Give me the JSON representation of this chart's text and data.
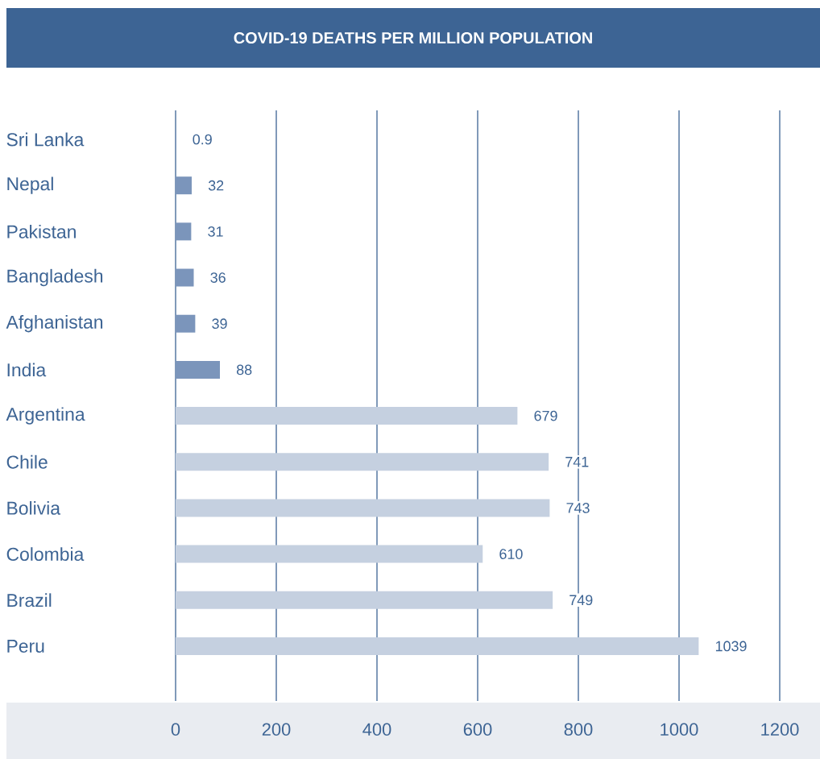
{
  "chart_data": {
    "type": "bar",
    "orientation": "horizontal",
    "title": "COVID-19 DEATHS PER MILLION POPULATION",
    "categories": [
      "Sri Lanka",
      "Nepal",
      "Pakistan",
      "Bangladesh",
      "Afghanistan",
      "India",
      "Argentina",
      "Chile",
      "Bolivia",
      "Colombia",
      "Brazil",
      "Peru"
    ],
    "values": [
      0.9,
      32,
      31,
      36,
      39,
      88,
      679,
      741,
      743,
      610,
      749,
      1039
    ],
    "colors": [
      "#7b95bb",
      "#7b95bb",
      "#7b95bb",
      "#7b95bb",
      "#7b95bb",
      "#7b95bb",
      "#c5d0e0",
      "#c5d0e0",
      "#c5d0e0",
      "#c5d0e0",
      "#c5d0e0",
      "#c5d0e0"
    ],
    "xlim": [
      0,
      1200
    ],
    "xticks": [
      0,
      200,
      400,
      600,
      800,
      1000,
      1200
    ],
    "data_labels": true,
    "grid": "x"
  }
}
